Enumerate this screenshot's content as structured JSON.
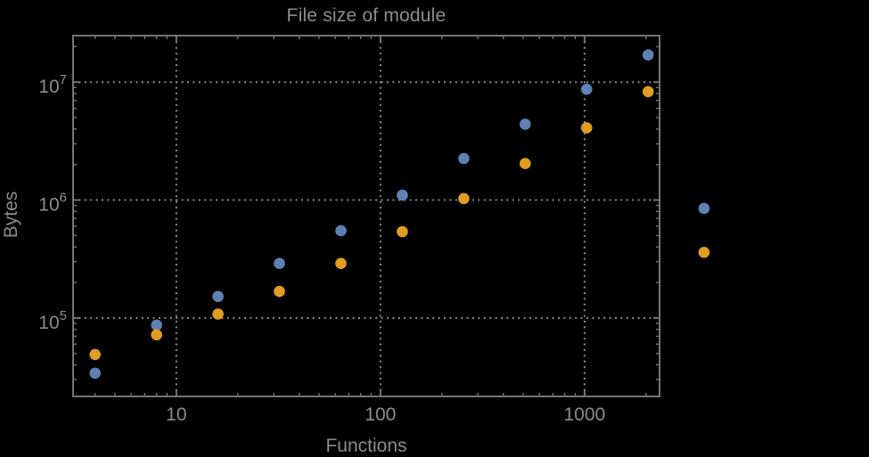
{
  "page": {
    "background": "#000000"
  },
  "chart_data": {
    "type": "scatter",
    "title": "File size of module",
    "xlabel": "Functions",
    "ylabel": "Bytes",
    "x_scale": "log",
    "y_scale": "log",
    "xlim": [
      3.12,
      2330
    ],
    "ylim": [
      21600,
      24800000
    ],
    "grid": {
      "on": true,
      "style": "dotted",
      "color": "#8d8d8d"
    },
    "legend": "none",
    "clip_points": false,
    "frame_color": "#747474",
    "text_color": "#8c8c8c",
    "x_ticks": [
      {
        "value": 10,
        "label": "10"
      },
      {
        "value": 100,
        "label": "100"
      },
      {
        "value": 1000,
        "label": "1000"
      }
    ],
    "y_ticks": [
      {
        "value": 100000,
        "label": "10^5",
        "base": "10",
        "exponent": "5"
      },
      {
        "value": 1000000,
        "label": "10^6",
        "base": "10",
        "exponent": "6"
      },
      {
        "value": 10000000,
        "label": "10^7",
        "base": "10",
        "exponent": "7"
      }
    ],
    "x": [
      4,
      8,
      16,
      32,
      64,
      128,
      256,
      512,
      1024,
      2048,
      3850
    ],
    "series": [
      {
        "name": "blue",
        "color": "#5e81b5",
        "values": [
          34000,
          87000,
          152000,
          290000,
          550000,
          1100000,
          2250000,
          4400000,
          8700000,
          17000000,
          850000
        ]
      },
      {
        "name": "orange",
        "color": "#e19c24",
        "values": [
          49000,
          72000,
          108000,
          168000,
          290000,
          540000,
          1030000,
          2040000,
          4100000,
          8300000,
          360000
        ]
      }
    ]
  }
}
